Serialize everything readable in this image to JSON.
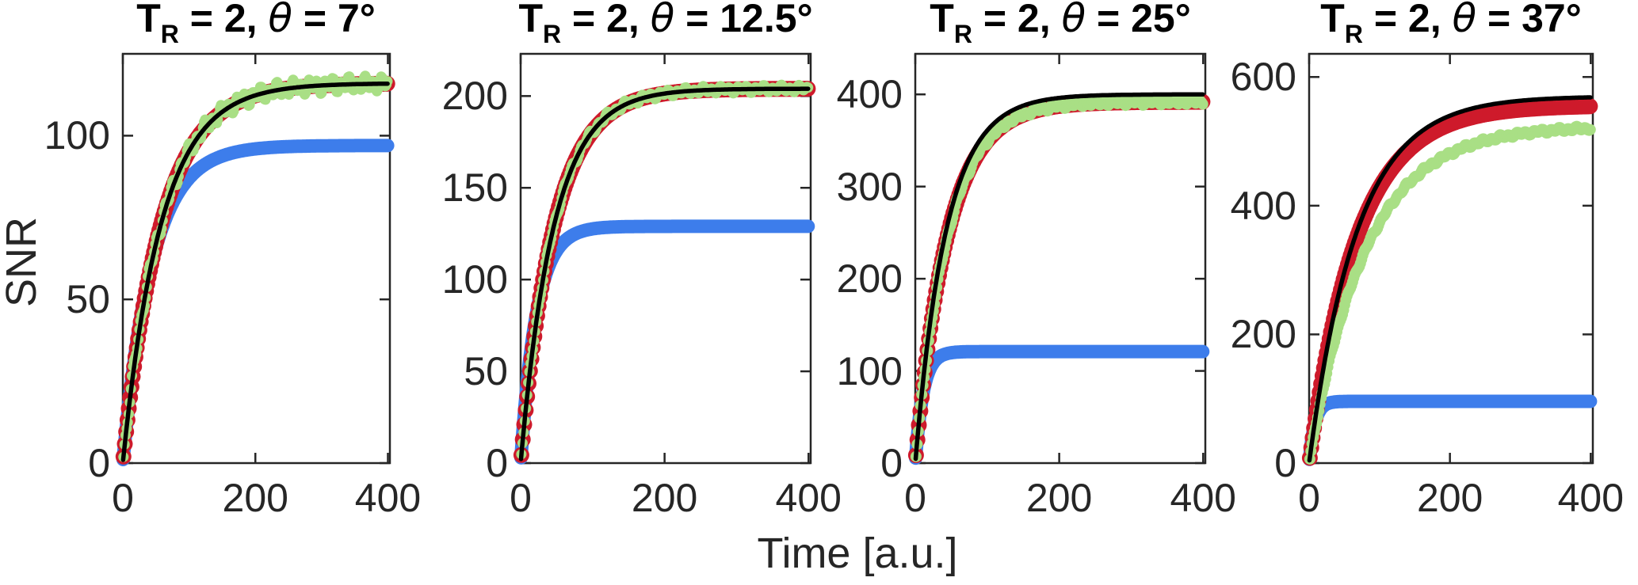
{
  "figure": {
    "ylabel": "SNR",
    "xlabel": "Time [a.u.]",
    "background": "#ffffff",
    "axis_color": "#262626",
    "label_color": "#262626"
  },
  "chart_data": [
    {
      "type": "line",
      "title_plain": "T_R = 2, θ = 7°",
      "title_parts": {
        "t": "T",
        "sub": "R",
        "eq": " = 2, ",
        "theta": "θ",
        "angle": " = 7°"
      },
      "xlim": [
        0,
        403
      ],
      "ylim": [
        0,
        125
      ],
      "xticks": [
        0,
        200,
        400
      ],
      "yticks": [
        0,
        50,
        100
      ],
      "series": [
        {
          "name": "blue-thick-curve",
          "style": "thick-line",
          "color": "#3D7DEB",
          "plateau": 97,
          "tau": 44,
          "line_width": 17
        },
        {
          "name": "red-circle-markers",
          "style": "circle-markers",
          "color": "#CE1A2B",
          "plateau": 116,
          "tau": 58,
          "marker_radius": 10
        },
        {
          "name": "green-data-dots",
          "style": "dot-band",
          "color": "#A9DF85",
          "plateau": 116,
          "tau": 58,
          "noise_amp": 1.6,
          "dot_radius": 6.5
        },
        {
          "name": "black-fit-line",
          "style": "solid-line",
          "color": "#000000",
          "plateau": 116,
          "tau": 58,
          "line_width": 5.5
        }
      ]
    },
    {
      "type": "line",
      "title_plain": "T_R = 2, θ = 12.5°",
      "title_parts": {
        "t": "T",
        "sub": "R",
        "eq": " = 2, ",
        "theta": "θ",
        "angle": " = 12.5°"
      },
      "xlim": [
        0,
        403
      ],
      "ylim": [
        0,
        223
      ],
      "xticks": [
        0,
        200,
        400
      ],
      "yticks": [
        0,
        50,
        100,
        150,
        200
      ],
      "series": [
        {
          "name": "blue-thick-curve",
          "style": "thick-line",
          "color": "#3D7DEB",
          "plateau": 129,
          "tau": 22,
          "line_width": 17
        },
        {
          "name": "red-circle-markers",
          "style": "circle-markers",
          "color": "#CE1A2B",
          "plateau": 204,
          "tau": 46,
          "marker_radius": 10
        },
        {
          "name": "green-data-dots",
          "style": "dot-band",
          "color": "#A9DF85",
          "plateau": 204,
          "tau": 46,
          "noise_amp": 1.4,
          "dot_radius": 6.5
        },
        {
          "name": "black-fit-line",
          "style": "solid-line",
          "color": "#000000",
          "plateau": 204,
          "tau": 46,
          "line_width": 5.5
        }
      ]
    },
    {
      "type": "line",
      "title_plain": "T_R = 2, θ = 25°",
      "title_parts": {
        "t": "T",
        "sub": "R",
        "eq": " = 2, ",
        "theta": "θ",
        "angle": " = 25°"
      },
      "xlim": [
        0,
        403
      ],
      "ylim": [
        0,
        444
      ],
      "xticks": [
        0,
        200,
        400
      ],
      "yticks": [
        0,
        100,
        200,
        300,
        400
      ],
      "series": [
        {
          "name": "blue-thick-curve",
          "style": "thick-line",
          "color": "#3D7DEB",
          "plateau": 121,
          "tau": 11,
          "line_width": 17
        },
        {
          "name": "red-circle-markers",
          "style": "circle-markers",
          "color": "#CE1A2B",
          "plateau": 392,
          "tau": 45,
          "marker_radius": 10
        },
        {
          "name": "green-data-dots",
          "style": "dot-band",
          "color": "#A9DF85",
          "plateau": 392,
          "tau": 45,
          "noise_amp": 2.2,
          "dot_radius": 7
        },
        {
          "name": "black-fit-line",
          "style": "solid-line",
          "color": "#000000",
          "plateau": 400,
          "tau": 43,
          "line_width": 5.5
        }
      ]
    },
    {
      "type": "line",
      "title_plain": "T_R = 2, θ = 37°",
      "title_parts": {
        "t": "T",
        "sub": "R",
        "eq": " = 2, ",
        "theta": "θ",
        "angle": " = 37°"
      },
      "xlim": [
        0,
        403
      ],
      "ylim": [
        0,
        636
      ],
      "xticks": [
        0,
        200,
        400
      ],
      "yticks": [
        0,
        200,
        400,
        600
      ],
      "series": [
        {
          "name": "blue-thick-curve",
          "style": "thick-line",
          "color": "#3D7DEB",
          "plateau": 96,
          "tau": 8,
          "line_width": 17
        },
        {
          "name": "red-circle-markers",
          "style": "circle-markers",
          "color": "#CE1A2B",
          "plateau": 556,
          "tau": 68,
          "marker_radius": 10
        },
        {
          "name": "green-data-dots",
          "style": "dot-band",
          "color": "#A9DF85",
          "plateau": 524,
          "tau": 80,
          "noise_amp": 2.4,
          "dot_radius": 7
        },
        {
          "name": "black-fit-line",
          "style": "solid-line",
          "color": "#000000",
          "plateau": 570,
          "tau": 68,
          "line_width": 5.5
        }
      ]
    }
  ]
}
